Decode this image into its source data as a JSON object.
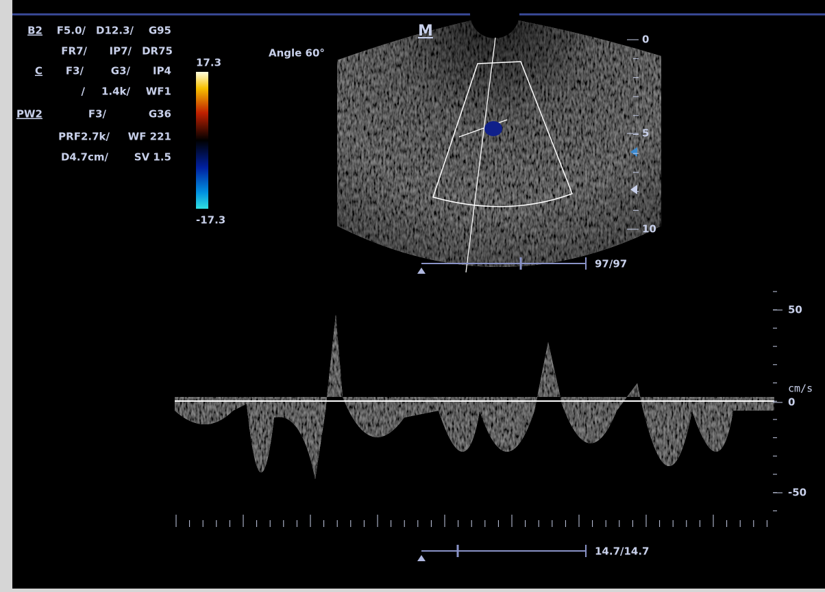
{
  "parameters": {
    "rows": [
      {
        "mode": "B2",
        "items": [
          "F5.0/",
          "D12.3/",
          "G95"
        ]
      },
      {
        "items": [
          "FR7/",
          "IP7/",
          "DR75"
        ]
      },
      {
        "mode": "C",
        "items": [
          "F3/",
          "G3/",
          "IP4"
        ]
      },
      {
        "items": [
          "/",
          "1.4k/",
          "WF1"
        ]
      },
      {
        "mode": "PW2",
        "items": [
          "F3/",
          "G36"
        ]
      },
      {
        "items": [
          "PRF2.7k/",
          "WF 221"
        ]
      },
      {
        "items": [
          "D4.7cm/",
          "SV 1.5"
        ]
      }
    ]
  },
  "color_scale": {
    "max": "17.3",
    "min": "-17.3"
  },
  "angle": "Angle 60°",
  "marker": "M",
  "depth_scale": {
    "labels": [
      "0",
      "5",
      "10"
    ]
  },
  "frame_counter": "97/97",
  "velocity_scale": {
    "unit": "cm/s",
    "labels": [
      "50",
      "0",
      "-50"
    ]
  },
  "time_counter": "14.7/14.7"
}
